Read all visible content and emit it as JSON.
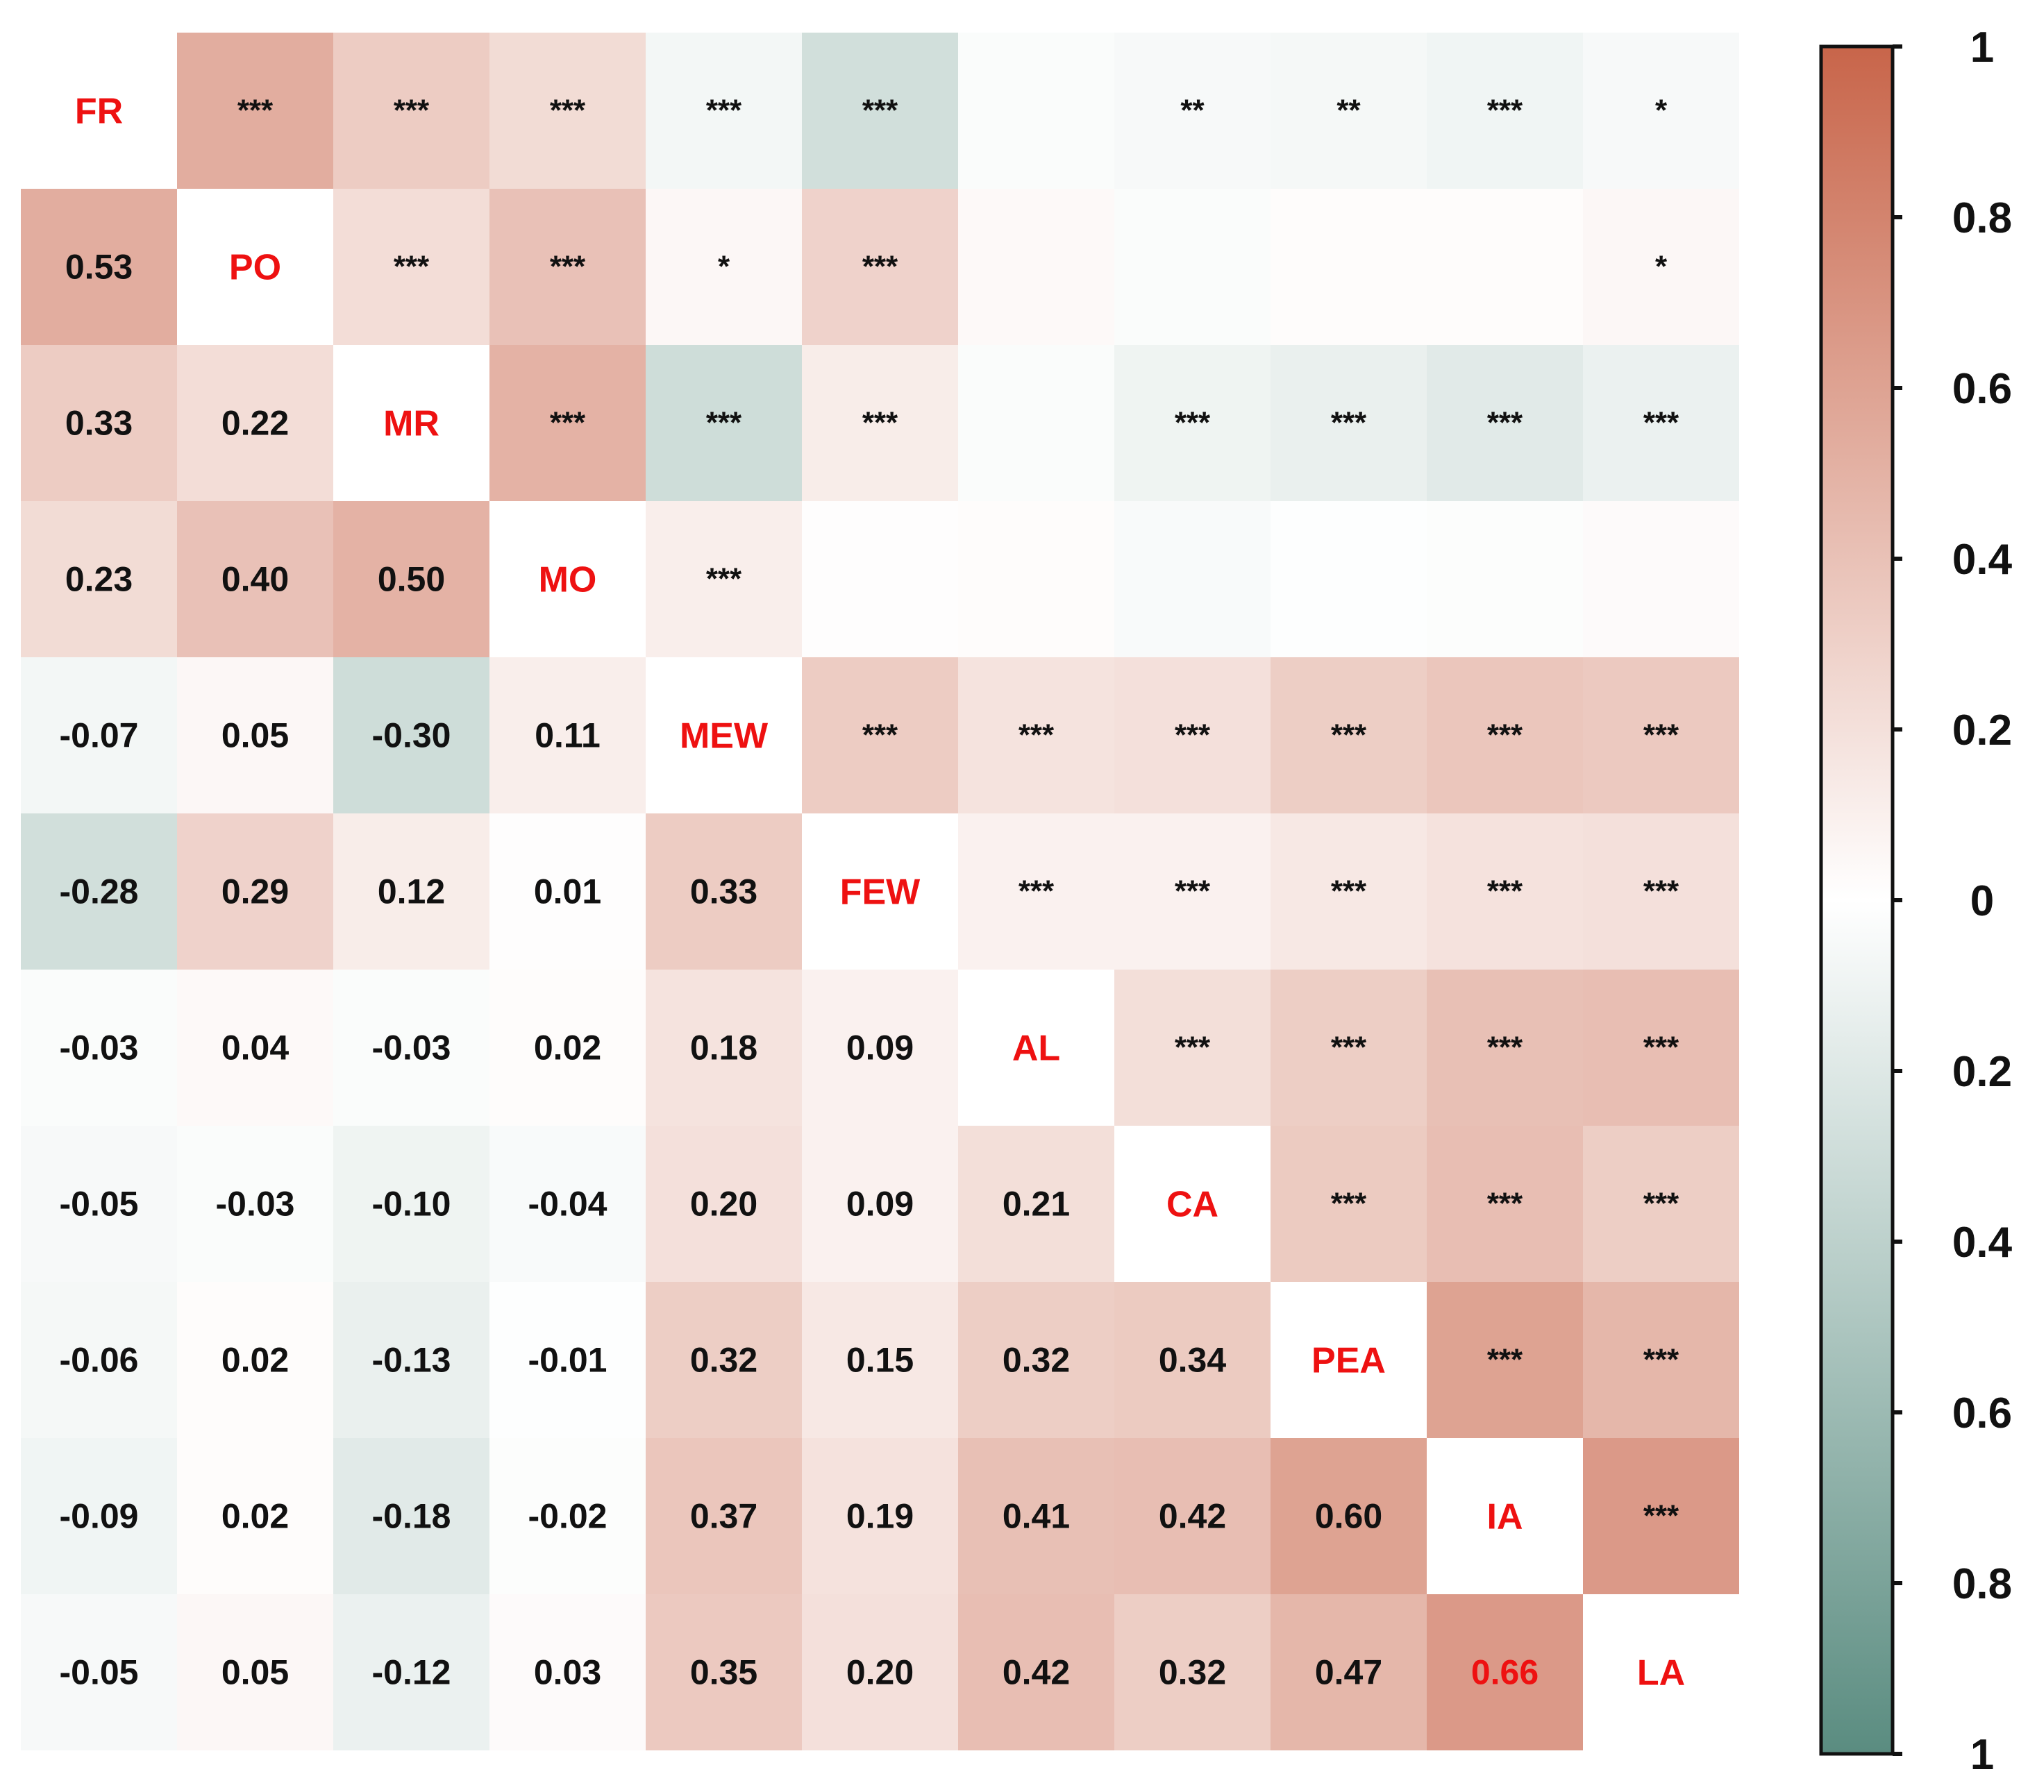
{
  "chart_data": {
    "type": "heatmap",
    "variables": [
      "FR",
      "PO",
      "MR",
      "MO",
      "MEW",
      "FEW",
      "AL",
      "CA",
      "PEA",
      "IA",
      "LA"
    ],
    "lower_values": [
      [],
      [
        "0.53"
      ],
      [
        "0.33",
        "0.22"
      ],
      [
        "0.23",
        "0.40",
        "0.50"
      ],
      [
        "-0.07",
        "0.05",
        "-0.30",
        "0.11"
      ],
      [
        "-0.28",
        "0.29",
        "0.12",
        "0.01",
        "0.33"
      ],
      [
        "-0.03",
        "0.04",
        "-0.03",
        "0.02",
        "0.18",
        "0.09"
      ],
      [
        "-0.05",
        "-0.03",
        "-0.10",
        "-0.04",
        "0.20",
        "0.09",
        "0.21"
      ],
      [
        "-0.06",
        "0.02",
        "-0.13",
        "-0.01",
        "0.32",
        "0.15",
        "0.32",
        "0.34"
      ],
      [
        "-0.09",
        "0.02",
        "-0.18",
        "-0.02",
        "0.37",
        "0.19",
        "0.41",
        "0.42",
        "0.60"
      ],
      [
        "-0.05",
        "0.05",
        "-0.12",
        "0.03",
        "0.35",
        "0.20",
        "0.42",
        "0.32",
        "0.47",
        "0.66"
      ]
    ],
    "upper_significance": [
      [
        "",
        "***",
        "***",
        "***",
        "***",
        "***",
        "",
        "**",
        "**",
        "***",
        "*"
      ],
      [
        "",
        "",
        "***",
        "***",
        "*",
        "***",
        "",
        "",
        "",
        "",
        "*"
      ],
      [
        "",
        "",
        "",
        "***",
        "***",
        "***",
        "",
        "***",
        "***",
        "***",
        "***"
      ],
      [
        "",
        "",
        "",
        "",
        "***",
        "",
        "",
        "",
        "",
        "",
        ""
      ],
      [
        "",
        "",
        "",
        "",
        "",
        "***",
        "***",
        "***",
        "***",
        "***",
        "***"
      ],
      [
        "",
        "",
        "",
        "",
        "",
        "",
        "***",
        "***",
        "***",
        "***",
        "***"
      ],
      [
        "",
        "",
        "",
        "",
        "",
        "",
        "",
        "***",
        "***",
        "***",
        "***"
      ],
      [
        "",
        "",
        "",
        "",
        "",
        "",
        "",
        "",
        "***",
        "***",
        "***"
      ],
      [
        "",
        "",
        "",
        "",
        "",
        "",
        "",
        "",
        "",
        "***",
        "***"
      ],
      [
        "",
        "",
        "",
        "",
        "",
        "",
        "",
        "",
        "",
        "",
        "***"
      ],
      [
        "",
        "",
        "",
        "",
        "",
        "",
        "",
        "",
        "",
        "",
        ""
      ]
    ],
    "highlighted_cell": {
      "row": 10,
      "col": 9
    },
    "colorbar": {
      "ticks": [
        "1",
        "0.8",
        "0.6",
        "0.4",
        "0.2",
        "0",
        "0.2",
        "0.4",
        "0.6",
        "0.8",
        "1"
      ],
      "positive_color": "#c8654a",
      "zero_color": "#ffffff",
      "negative_color": "#5a8c80"
    },
    "label_color": "#ee1111",
    "value_color": "#111111"
  }
}
